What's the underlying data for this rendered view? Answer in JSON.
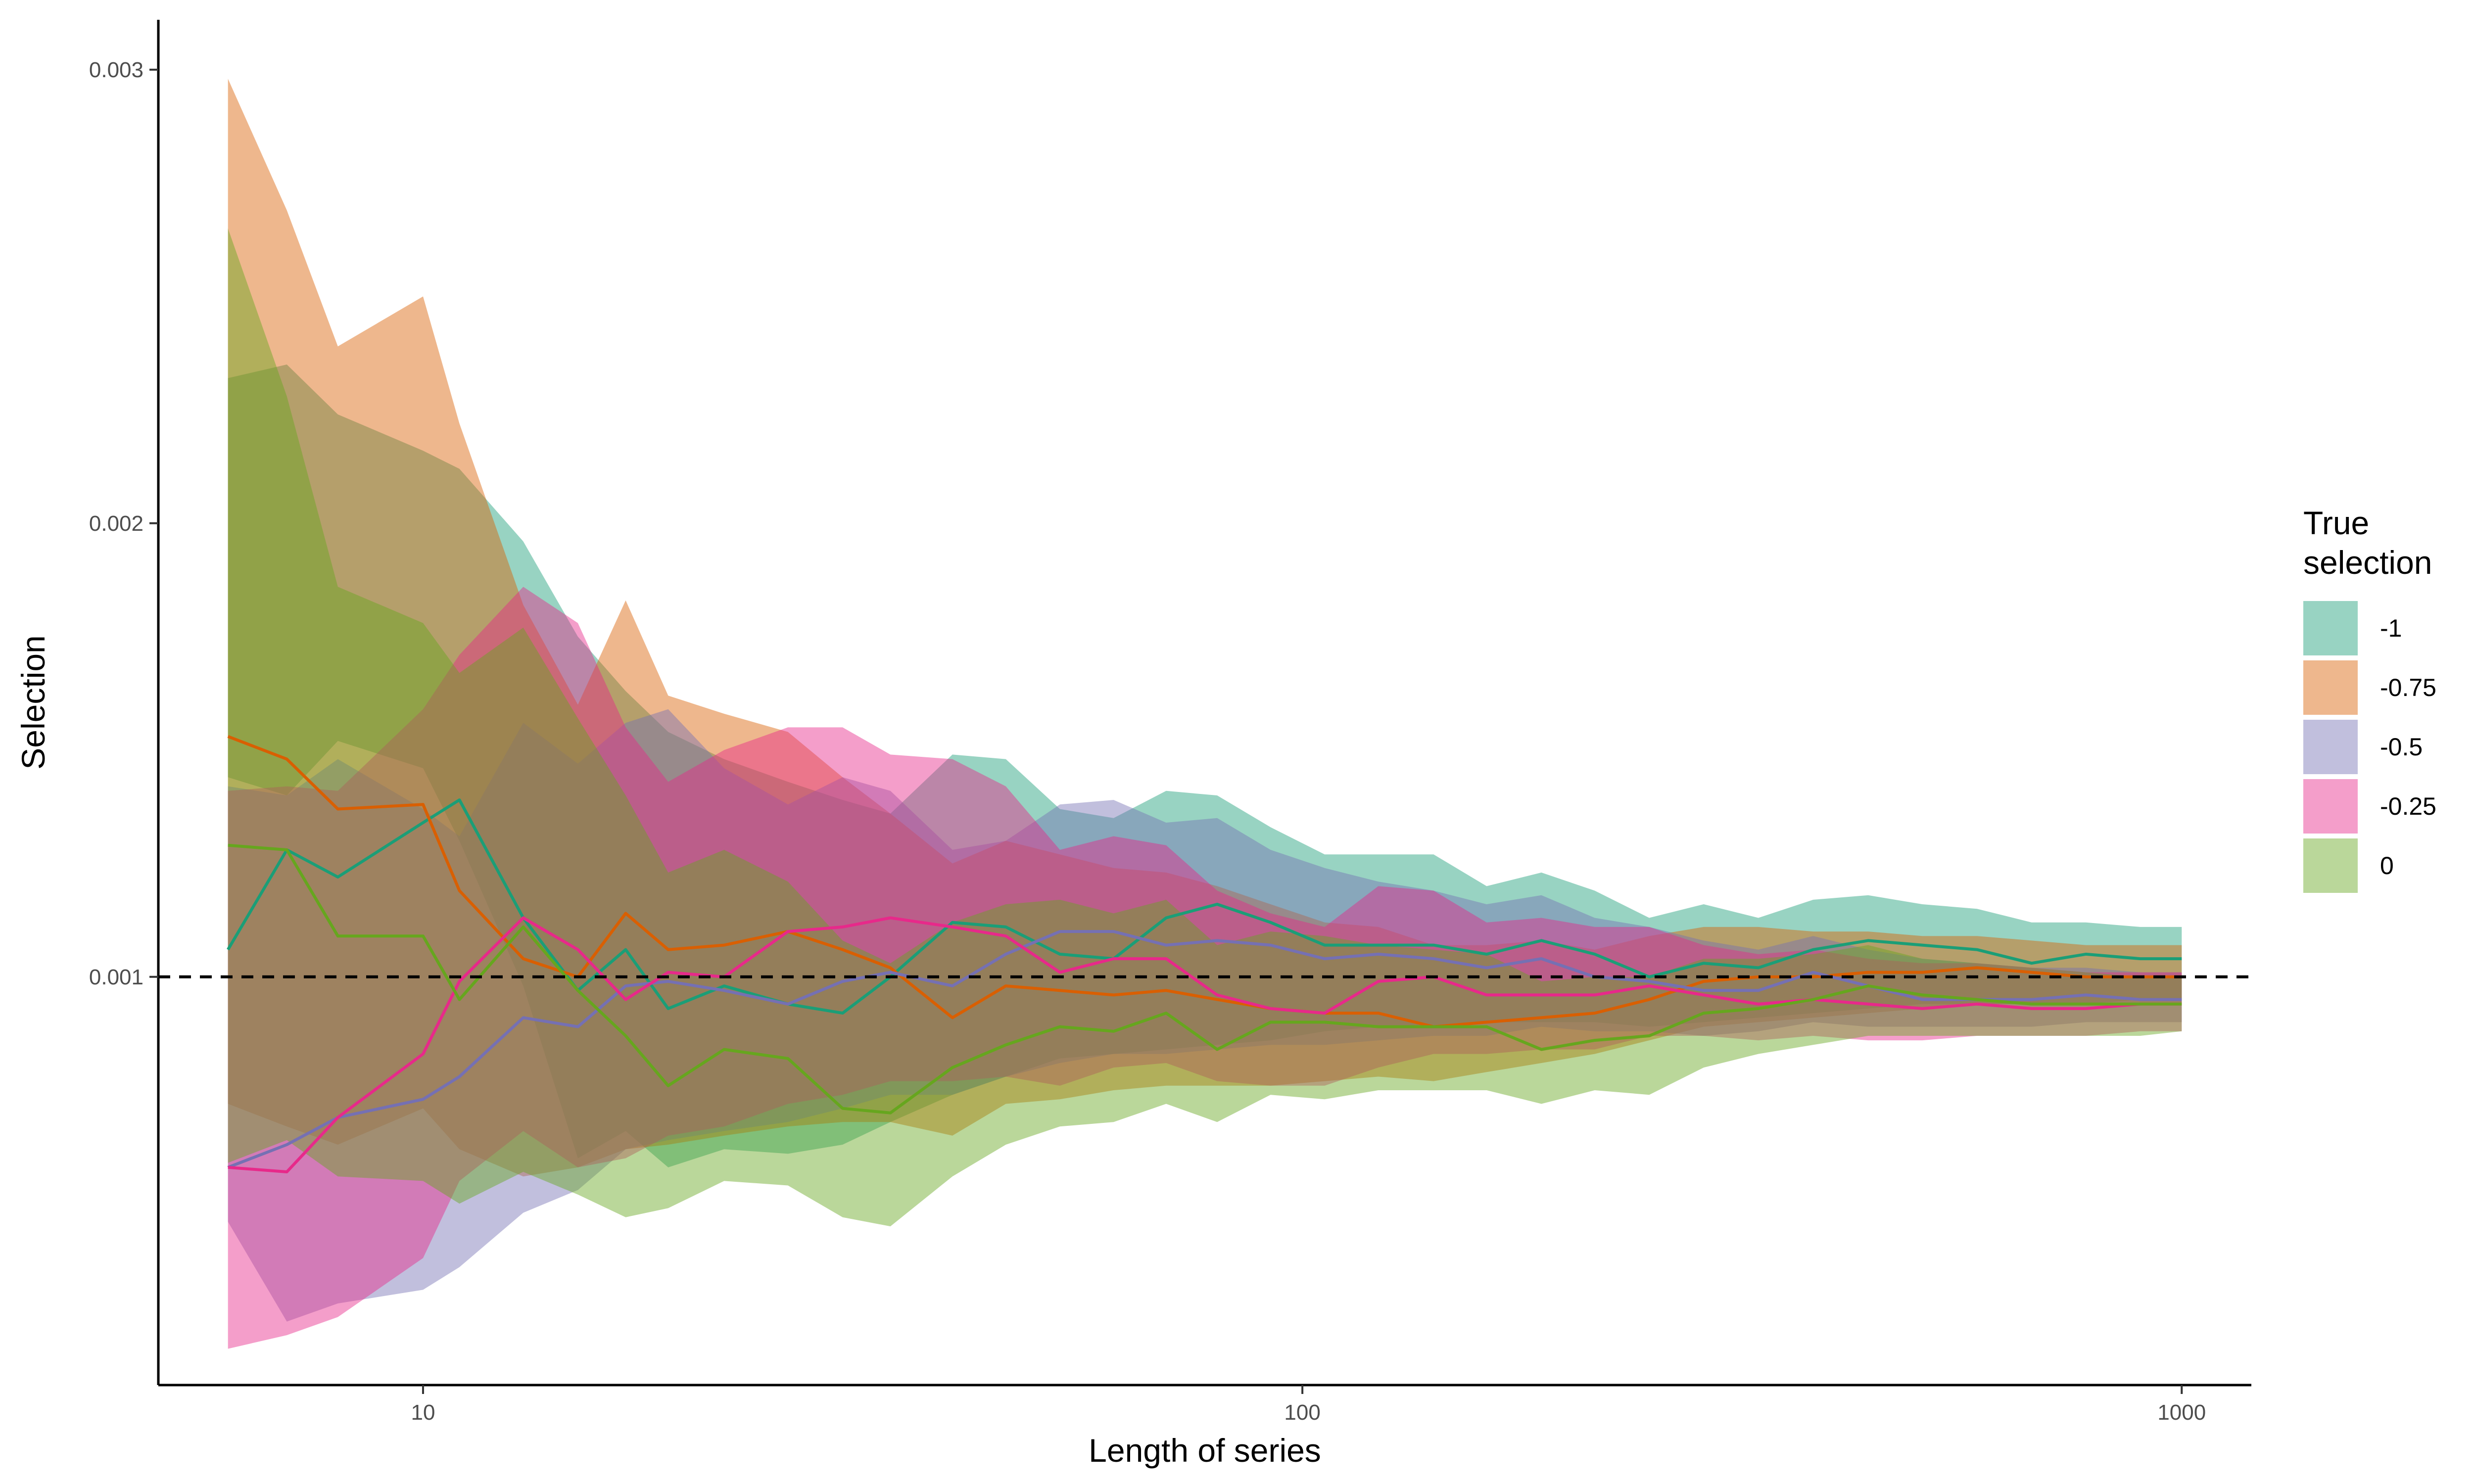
{
  "chart_data": {
    "type": "area",
    "xlabel": "Length of series",
    "ylabel": "Selection",
    "x_scale": "log10",
    "xlim": [
      5,
      1200
    ],
    "ylim": [
      0.0001,
      0.00311
    ],
    "x_ticks": [
      10,
      100,
      1000
    ],
    "x_tick_labels": [
      "10",
      "100",
      "1000"
    ],
    "y_ticks": [
      0.001,
      0.002,
      0.003
    ],
    "y_tick_labels": [
      "0.001",
      "0.002",
      "0.003"
    ],
    "reference_line": {
      "y": 0.001,
      "style": "dashed"
    },
    "grid": false,
    "legend": {
      "title": "True selection",
      "title_lines": [
        "True",
        "selection"
      ],
      "position": "right"
    },
    "x": [
      6,
      7,
      8,
      10,
      11,
      13,
      15,
      17,
      19,
      22,
      26,
      30,
      34,
      40,
      46,
      53,
      61,
      70,
      80,
      92,
      106,
      122,
      141,
      162,
      187,
      215,
      248,
      286,
      330,
      381,
      440,
      507,
      585,
      675,
      778,
      897,
      1000
    ],
    "series": [
      {
        "name": "-1",
        "fill": "#1b9e77",
        "line": "#1b9e77",
        "mean": [
          0.00106,
          0.00128,
          0.00122,
          0.00134,
          0.00139,
          0.00113,
          0.00097,
          0.00106,
          0.00093,
          0.00098,
          0.00094,
          0.00092,
          0.001,
          0.00112,
          0.00111,
          0.00105,
          0.00104,
          0.00113,
          0.00116,
          0.00112,
          0.00107,
          0.00107,
          0.00107,
          0.00105,
          0.00108,
          0.00105,
          0.001,
          0.00103,
          0.00102,
          0.00106,
          0.00108,
          0.00107,
          0.00106,
          0.00103,
          0.00105,
          0.00104,
          0.00104
        ],
        "upper": [
          0.00232,
          0.00235,
          0.00224,
          0.00216,
          0.00212,
          0.00196,
          0.00175,
          0.00163,
          0.00154,
          0.00148,
          0.00143,
          0.00139,
          0.00136,
          0.00149,
          0.00148,
          0.00137,
          0.00135,
          0.00141,
          0.0014,
          0.00133,
          0.00127,
          0.00127,
          0.00127,
          0.0012,
          0.00123,
          0.00119,
          0.00113,
          0.00116,
          0.00113,
          0.00117,
          0.00118,
          0.00116,
          0.00115,
          0.00112,
          0.00112,
          0.00111,
          0.00111
        ],
        "lower": [
          0.00144,
          0.0014,
          0.00152,
          0.00146,
          0.0013,
          0.00098,
          0.0006,
          0.00066,
          0.00058,
          0.00062,
          0.00061,
          0.00063,
          0.00068,
          0.00074,
          0.00078,
          0.00082,
          0.00083,
          0.00084,
          0.00085,
          0.00086,
          0.00088,
          0.00089,
          0.00089,
          0.0009,
          0.0009,
          0.0009,
          0.00089,
          0.0009,
          0.00091,
          0.00092,
          0.00093,
          0.00094,
          0.00094,
          0.00094,
          0.00094,
          0.00095,
          0.00095
        ]
      },
      {
        "name": "-0.75",
        "fill": "#d95f02",
        "line": "#d95f02",
        "mean": [
          0.00153,
          0.00148,
          0.00137,
          0.00138,
          0.00119,
          0.00104,
          0.001,
          0.00114,
          0.00106,
          0.00107,
          0.0011,
          0.00106,
          0.00102,
          0.00091,
          0.00098,
          0.00097,
          0.00096,
          0.00097,
          0.00095,
          0.00093,
          0.00092,
          0.00092,
          0.00089,
          0.0009,
          0.00091,
          0.00092,
          0.00095,
          0.00099,
          0.001,
          0.001,
          0.00101,
          0.00101,
          0.00102,
          0.00101,
          0.001,
          0.001,
          0.001
        ],
        "upper": [
          0.00298,
          0.00269,
          0.00239,
          0.0025,
          0.00222,
          0.00182,
          0.0016,
          0.00183,
          0.00162,
          0.00158,
          0.00154,
          0.00144,
          0.00136,
          0.00125,
          0.0013,
          0.00127,
          0.00124,
          0.00123,
          0.0012,
          0.00116,
          0.00112,
          0.00111,
          0.00107,
          0.00107,
          0.00108,
          0.00106,
          0.00109,
          0.00111,
          0.00111,
          0.0011,
          0.0011,
          0.00109,
          0.00109,
          0.00108,
          0.00107,
          0.00107,
          0.00107
        ],
        "lower": [
          0.00072,
          0.00067,
          0.00063,
          0.00071,
          0.00062,
          0.00056,
          0.00058,
          0.00062,
          0.00063,
          0.00065,
          0.00067,
          0.00068,
          0.00068,
          0.00065,
          0.00072,
          0.00073,
          0.00075,
          0.00076,
          0.00076,
          0.00076,
          0.00077,
          0.00078,
          0.00077,
          0.00079,
          0.00081,
          0.00083,
          0.00086,
          0.00089,
          0.0009,
          0.00091,
          0.00092,
          0.00093,
          0.00094,
          0.00094,
          0.00094,
          0.00094,
          0.00094
        ]
      },
      {
        "name": "-0.5",
        "fill": "#7570b3",
        "line": "#7570b3",
        "mean": [
          0.00058,
          0.00063,
          0.00069,
          0.00073,
          0.00078,
          0.00091,
          0.00089,
          0.00098,
          0.00099,
          0.00097,
          0.00094,
          0.00099,
          0.00101,
          0.00098,
          0.00105,
          0.0011,
          0.0011,
          0.00107,
          0.00108,
          0.00107,
          0.00104,
          0.00105,
          0.00104,
          0.00102,
          0.00104,
          0.001,
          0.00099,
          0.00097,
          0.00097,
          0.00101,
          0.00098,
          0.00095,
          0.00095,
          0.00095,
          0.00096,
          0.00095,
          0.00095
        ],
        "upper": [
          0.00142,
          0.0014,
          0.00148,
          0.00137,
          0.00131,
          0.00156,
          0.00147,
          0.00156,
          0.00159,
          0.00146,
          0.00138,
          0.00144,
          0.00141,
          0.00128,
          0.0013,
          0.00138,
          0.00139,
          0.00134,
          0.00135,
          0.00128,
          0.00124,
          0.00121,
          0.00119,
          0.00116,
          0.00118,
          0.00113,
          0.00111,
          0.00108,
          0.00106,
          0.00109,
          0.00106,
          0.00104,
          0.00103,
          0.00102,
          0.00102,
          0.00101,
          0.00101
        ],
        "lower": [
          0.00046,
          0.00024,
          0.00028,
          0.00031,
          0.00036,
          0.00048,
          0.00053,
          0.00062,
          0.00064,
          0.00066,
          0.00068,
          0.00071,
          0.00074,
          0.00074,
          0.00078,
          0.00081,
          0.00083,
          0.00083,
          0.00084,
          0.00085,
          0.00085,
          0.00086,
          0.00087,
          0.00087,
          0.00089,
          0.00088,
          0.00088,
          0.00087,
          0.00088,
          0.0009,
          0.00089,
          0.00089,
          0.00089,
          0.00089,
          0.0009,
          0.0009,
          0.0009
        ]
      },
      {
        "name": "-0.25",
        "fill": "#e7298a",
        "line": "#e7298a",
        "mean": [
          0.00058,
          0.00057,
          0.00069,
          0.00083,
          0.00099,
          0.00113,
          0.00106,
          0.00095,
          0.00101,
          0.001,
          0.0011,
          0.00111,
          0.00113,
          0.00111,
          0.00109,
          0.00101,
          0.00104,
          0.00104,
          0.00096,
          0.00093,
          0.00092,
          0.00099,
          0.001,
          0.00096,
          0.00096,
          0.00096,
          0.00098,
          0.00096,
          0.00094,
          0.00095,
          0.00094,
          0.00093,
          0.00094,
          0.00093,
          0.00093,
          0.00094,
          0.00094
        ],
        "upper": [
          0.00141,
          0.00142,
          0.00141,
          0.00159,
          0.00171,
          0.00186,
          0.00178,
          0.00155,
          0.00143,
          0.0015,
          0.00155,
          0.00155,
          0.00149,
          0.00148,
          0.00142,
          0.00128,
          0.00131,
          0.00129,
          0.00119,
          0.00114,
          0.00111,
          0.0012,
          0.00119,
          0.00112,
          0.00113,
          0.00111,
          0.00111,
          0.00107,
          0.00105,
          0.00106,
          0.00104,
          0.00103,
          0.00103,
          0.00102,
          0.00101,
          0.00101,
          0.00101
        ],
        "lower": [
          0.00018,
          0.00021,
          0.00025,
          0.00038,
          0.00055,
          0.00066,
          0.00058,
          0.0006,
          0.00065,
          0.00067,
          0.00072,
          0.00074,
          0.00077,
          0.00077,
          0.00078,
          0.00076,
          0.0008,
          0.00081,
          0.00077,
          0.00076,
          0.00076,
          0.0008,
          0.00083,
          0.00083,
          0.00084,
          0.00084,
          0.00087,
          0.00087,
          0.00086,
          0.00087,
          0.00086,
          0.00086,
          0.00087,
          0.00087,
          0.00087,
          0.00088,
          0.00088
        ]
      },
      {
        "name": "0",
        "fill": "#66a61e",
        "line": "#66a61e",
        "mean": [
          0.00129,
          0.00128,
          0.00109,
          0.00109,
          0.00095,
          0.00111,
          0.00097,
          0.00087,
          0.00076,
          0.00084,
          0.00082,
          0.00071,
          0.0007,
          0.0008,
          0.00085,
          0.00089,
          0.00088,
          0.00092,
          0.00084,
          0.0009,
          0.0009,
          0.00089,
          0.00089,
          0.00089,
          0.00084,
          0.00086,
          0.00087,
          0.00092,
          0.00093,
          0.00095,
          0.00098,
          0.00096,
          0.00095,
          0.00094,
          0.00094,
          0.00094,
          0.00094
        ],
        "upper": [
          0.00265,
          0.00228,
          0.00186,
          0.00178,
          0.00167,
          0.00177,
          0.00157,
          0.0014,
          0.00123,
          0.00128,
          0.00121,
          0.00108,
          0.00103,
          0.00112,
          0.00116,
          0.00117,
          0.00114,
          0.00117,
          0.00107,
          0.0011,
          0.00109,
          0.00107,
          0.00106,
          0.00105,
          0.00099,
          0.001,
          0.001,
          0.00104,
          0.00104,
          0.00105,
          0.00107,
          0.00104,
          0.00103,
          0.00102,
          0.00101,
          0.001,
          0.001
        ],
        "lower": [
          0.00059,
          0.00064,
          0.00056,
          0.00055,
          0.0005,
          0.00057,
          0.00052,
          0.00047,
          0.00049,
          0.00055,
          0.00054,
          0.00047,
          0.00045,
          0.00056,
          0.00063,
          0.00067,
          0.00068,
          0.00072,
          0.00068,
          0.00074,
          0.00073,
          0.00075,
          0.00075,
          0.00075,
          0.00072,
          0.00075,
          0.00074,
          0.0008,
          0.00083,
          0.00085,
          0.00087,
          0.00087,
          0.00087,
          0.00087,
          0.00087,
          0.00087,
          0.00088
        ]
      }
    ]
  }
}
